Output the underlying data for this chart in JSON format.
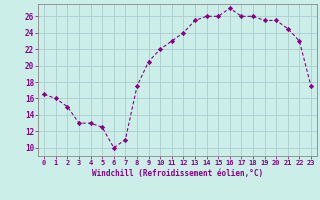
{
  "x": [
    0,
    1,
    2,
    3,
    4,
    5,
    6,
    7,
    8,
    9,
    10,
    11,
    12,
    13,
    14,
    15,
    16,
    17,
    18,
    19,
    20,
    21,
    22,
    23
  ],
  "y": [
    16.5,
    16.0,
    15.0,
    13.0,
    13.0,
    12.5,
    10.0,
    11.0,
    17.5,
    20.5,
    22.0,
    23.0,
    24.0,
    25.5,
    26.0,
    26.0,
    27.0,
    26.0,
    26.0,
    25.5,
    25.5,
    24.5,
    23.0,
    17.5
  ],
  "line_color": "#880088",
  "marker": "D",
  "marker_size": 2.2,
  "bg_color": "#cceee8",
  "grid_color": "#aacccc",
  "xlabel": "Windchill (Refroidissement éolien,°C)",
  "ylabel_ticks": [
    10,
    12,
    14,
    16,
    18,
    20,
    22,
    24,
    26
  ],
  "ylim": [
    9.0,
    27.5
  ],
  "xlim": [
    -0.5,
    23.5
  ],
  "xtick_labels": [
    "0",
    "1",
    "2",
    "3",
    "4",
    "5",
    "6",
    "7",
    "8",
    "9",
    "10",
    "11",
    "12",
    "13",
    "14",
    "15",
    "16",
    "17",
    "18",
    "19",
    "20",
    "21",
    "22",
    "23"
  ],
  "tick_color": "#880088",
  "label_color": "#880088",
  "spine_color": "#888888"
}
